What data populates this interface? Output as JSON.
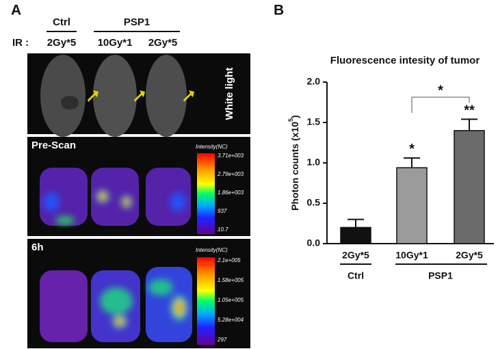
{
  "panel_labels": [
    "A",
    "B"
  ],
  "panel_a": {
    "groups": [
      "Ctrl",
      "PSP1"
    ],
    "row_header": "IR :",
    "columns": [
      "2Gy*5",
      "10Gy*1",
      "2Gy*5"
    ],
    "rows": [
      {
        "label": "White light"
      },
      {
        "label": "Pre-Scan",
        "scale_title": "Intensity(NC)",
        "scale_labels": [
          "3.71e+003",
          "2.79e+003",
          "1.86e+003",
          "937",
          "10.7"
        ]
      },
      {
        "label": "6h",
        "scale_title": "Intensity(NC)",
        "scale_labels": [
          "2.1e+005",
          "1.58e+005",
          "1.05e+005",
          "5.28e+004",
          "297"
        ]
      }
    ]
  },
  "chart_data": {
    "type": "bar",
    "title": "Fluorescence intesity of tumor",
    "y_label": "Photon counts (x10",
    "y_label_exponent": "5",
    "y_label_end": ")",
    "categories": [
      "2Gy*5",
      "10Gy*1",
      "2Gy*5"
    ],
    "groups": [
      "Ctrl",
      "PSP1"
    ],
    "values": [
      0.2,
      0.94,
      1.4
    ],
    "errors": [
      0.1,
      0.12,
      0.14
    ],
    "colors": [
      "#111111",
      "#9b9b9b",
      "#6b6b6b"
    ],
    "significance_labels": [
      null,
      "*",
      "**"
    ],
    "bracket_label": "*",
    "ylim": [
      0,
      2
    ],
    "yticks": [
      {
        "value": 0,
        "label": "0.0"
      },
      {
        "value": 0.5,
        "label": "0.5"
      },
      {
        "value": 1,
        "label": "1.0"
      },
      {
        "value": 1.5,
        "label": "1.5"
      },
      {
        "value": 2,
        "label": "2.0"
      }
    ]
  }
}
